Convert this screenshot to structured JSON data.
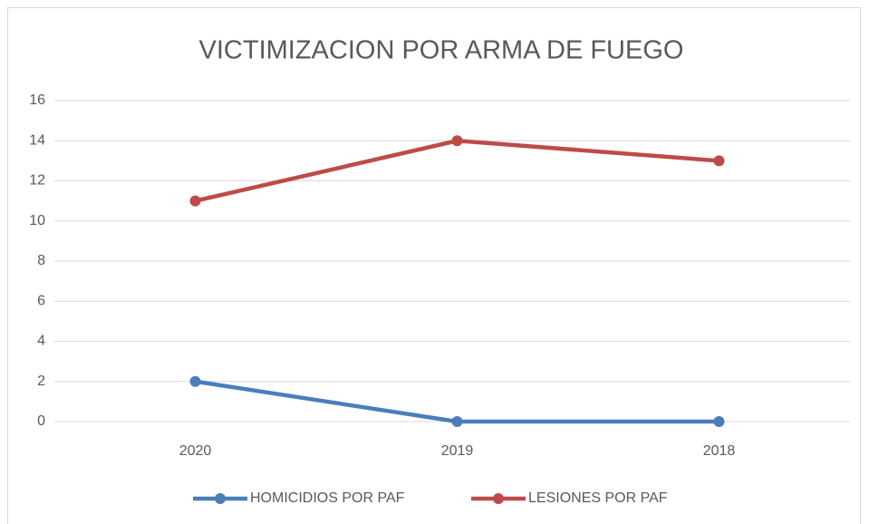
{
  "chart_data": {
    "type": "line",
    "title": "VICTIMIZACION POR ARMA DE FUEGO",
    "categories": [
      "2020",
      "2019",
      "2018"
    ],
    "series": [
      {
        "name": "HOMICIDIOS POR PAF",
        "color": "#4a7ebb",
        "values": [
          2,
          0,
          0
        ]
      },
      {
        "name": "LESIONES POR PAF",
        "color": "#be4b48",
        "values": [
          11,
          14,
          13
        ]
      }
    ],
    "ylim": [
      0,
      16
    ],
    "yticks": [
      0,
      2,
      4,
      6,
      8,
      10,
      12,
      14,
      16
    ],
    "grid": true,
    "legend": "bottom"
  }
}
